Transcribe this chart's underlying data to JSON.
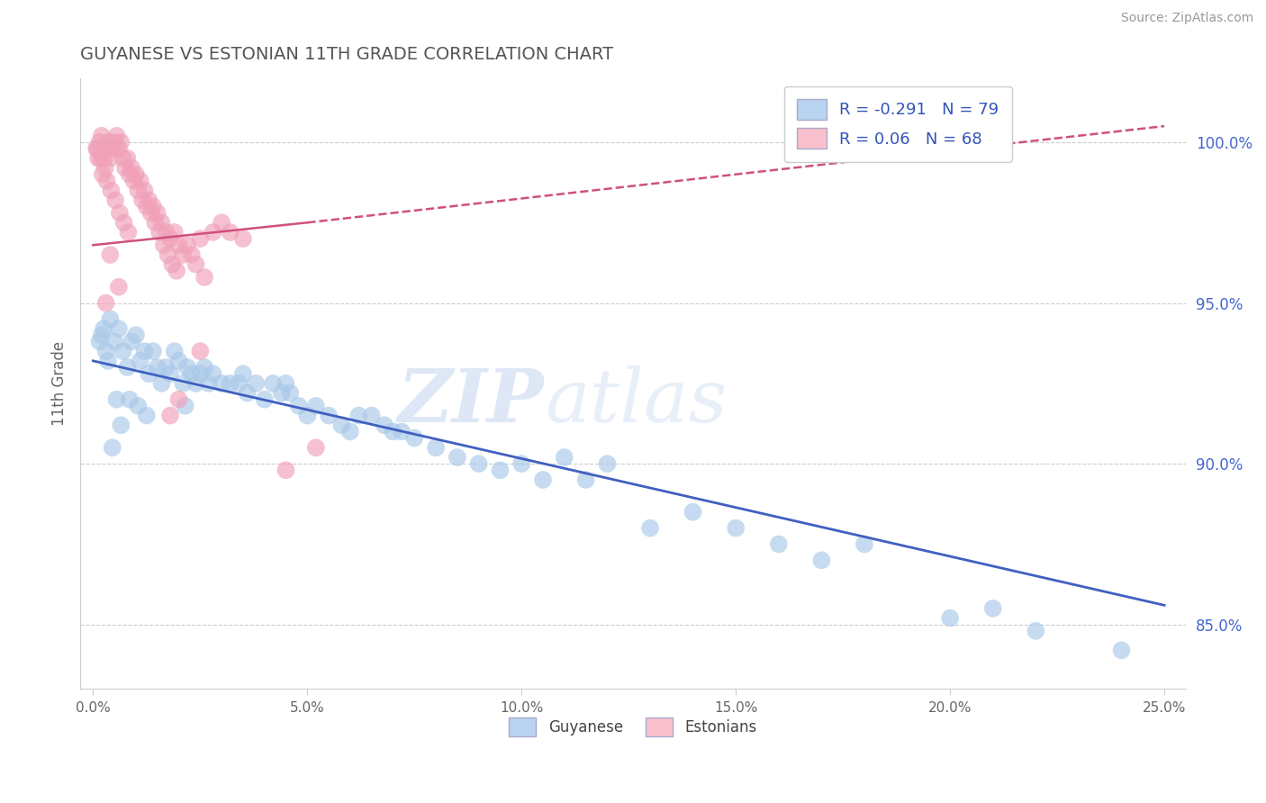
{
  "title": "GUYANESE VS ESTONIAN 11TH GRADE CORRELATION CHART",
  "source": "Source: ZipAtlas.com",
  "ylabel": "11th Grade",
  "xlim": [
    -0.3,
    25.5
  ],
  "ylim": [
    83.0,
    102.0
  ],
  "xticks": [
    0.0,
    5.0,
    10.0,
    15.0,
    20.0,
    25.0
  ],
  "xticklabels": [
    "0.0%",
    "5.0%",
    "10.0%",
    "15.0%",
    "20.0%",
    "25.0%"
  ],
  "yticks": [
    85.0,
    90.0,
    95.0,
    100.0
  ],
  "yticklabels": [
    "85.0%",
    "90.0%",
    "95.0%",
    "100.0%"
  ],
  "blue_color": "#A8C8E8",
  "pink_color": "#F0A0B8",
  "blue_line_color": "#4060C0",
  "pink_line_color": "#D05080",
  "legend_blue_color": "#B8D4F0",
  "legend_pink_color": "#F8C0CC",
  "R_blue": -0.291,
  "N_blue": 79,
  "R_pink": 0.06,
  "N_pink": 68,
  "watermark_1": "ZIP",
  "watermark_2": "atlas",
  "background_color": "#ffffff",
  "grid_color": "#cccccc",
  "blue_line_x0": 0.0,
  "blue_line_y0": 93.2,
  "blue_line_x1": 25.0,
  "blue_line_y1": 85.6,
  "pink_solid_x0": 0.0,
  "pink_solid_y0": 96.8,
  "pink_solid_x1": 5.0,
  "pink_solid_y1": 97.5,
  "pink_dash_x0": 5.0,
  "pink_dash_y0": 97.5,
  "pink_dash_x1": 25.0,
  "pink_dash_y1": 100.5,
  "blue_scatter_x": [
    0.15,
    0.2,
    0.25,
    0.3,
    0.35,
    0.4,
    0.5,
    0.6,
    0.7,
    0.8,
    0.9,
    1.0,
    1.1,
    1.2,
    1.3,
    1.4,
    1.5,
    1.6,
    1.7,
    1.8,
    1.9,
    2.0,
    2.1,
    2.2,
    2.3,
    2.4,
    2.5,
    2.6,
    2.7,
    2.8,
    3.0,
    3.2,
    3.4,
    3.5,
    3.6,
    3.8,
    4.0,
    4.2,
    4.4,
    4.5,
    4.6,
    4.8,
    5.0,
    5.2,
    5.5,
    5.8,
    6.0,
    6.2,
    6.5,
    6.8,
    7.0,
    7.2,
    7.5,
    8.0,
    8.5,
    9.0,
    9.5,
    10.0,
    10.5,
    11.0,
    11.5,
    12.0,
    13.0,
    14.0,
    15.0,
    16.0,
    17.0,
    18.0,
    20.0,
    21.0,
    22.0,
    24.0,
    0.45,
    0.55,
    0.65,
    0.85,
    1.05,
    1.25,
    2.15
  ],
  "blue_scatter_y": [
    93.8,
    94.0,
    94.2,
    93.5,
    93.2,
    94.5,
    93.8,
    94.2,
    93.5,
    93.0,
    93.8,
    94.0,
    93.2,
    93.5,
    92.8,
    93.5,
    93.0,
    92.5,
    93.0,
    92.8,
    93.5,
    93.2,
    92.5,
    93.0,
    92.8,
    92.5,
    92.8,
    93.0,
    92.5,
    92.8,
    92.5,
    92.5,
    92.5,
    92.8,
    92.2,
    92.5,
    92.0,
    92.5,
    92.2,
    92.5,
    92.2,
    91.8,
    91.5,
    91.8,
    91.5,
    91.2,
    91.0,
    91.5,
    91.5,
    91.2,
    91.0,
    91.0,
    90.8,
    90.5,
    90.2,
    90.0,
    89.8,
    90.0,
    89.5,
    90.2,
    89.5,
    90.0,
    88.0,
    88.5,
    88.0,
    87.5,
    87.0,
    87.5,
    85.2,
    85.5,
    84.8,
    84.2,
    90.5,
    92.0,
    91.2,
    92.0,
    91.8,
    91.5,
    91.8
  ],
  "pink_scatter_x": [
    0.1,
    0.15,
    0.2,
    0.25,
    0.3,
    0.35,
    0.4,
    0.45,
    0.5,
    0.55,
    0.6,
    0.65,
    0.7,
    0.75,
    0.8,
    0.85,
    0.9,
    0.95,
    1.0,
    1.05,
    1.1,
    1.2,
    1.3,
    1.4,
    1.5,
    1.6,
    1.7,
    1.8,
    1.9,
    2.0,
    2.1,
    2.2,
    2.3,
    2.5,
    2.8,
    3.0,
    3.2,
    3.5,
    0.12,
    0.22,
    0.32,
    0.42,
    0.52,
    0.62,
    0.72,
    0.82,
    1.15,
    1.25,
    1.35,
    1.45,
    1.55,
    1.65,
    1.75,
    1.85,
    1.95,
    2.4,
    2.6,
    0.08,
    0.18,
    0.28,
    4.5,
    5.2,
    2.0,
    0.6,
    0.4,
    1.8,
    0.3,
    2.5
  ],
  "pink_scatter_y": [
    99.8,
    100.0,
    100.2,
    99.5,
    99.8,
    100.0,
    99.5,
    99.8,
    100.0,
    100.2,
    99.8,
    100.0,
    99.5,
    99.2,
    99.5,
    99.0,
    99.2,
    98.8,
    99.0,
    98.5,
    98.8,
    98.5,
    98.2,
    98.0,
    97.8,
    97.5,
    97.2,
    97.0,
    97.2,
    96.8,
    96.5,
    96.8,
    96.5,
    97.0,
    97.2,
    97.5,
    97.2,
    97.0,
    99.5,
    99.0,
    98.8,
    98.5,
    98.2,
    97.8,
    97.5,
    97.2,
    98.2,
    98.0,
    97.8,
    97.5,
    97.2,
    96.8,
    96.5,
    96.2,
    96.0,
    96.2,
    95.8,
    99.8,
    99.5,
    99.2,
    89.8,
    90.5,
    92.0,
    95.5,
    96.5,
    91.5,
    95.0,
    93.5
  ]
}
